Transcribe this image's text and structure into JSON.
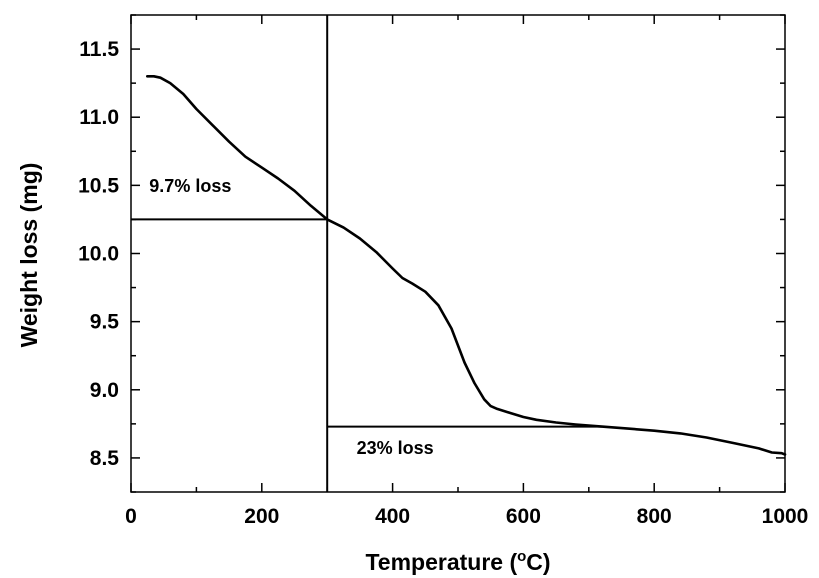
{
  "chart_data": {
    "type": "line",
    "xlabel": "Temperature (",
    "xlabel_superscript": "o",
    "xlabel_suffix": "C)",
    "ylabel": "Weight loss (mg)",
    "xlim": [
      0,
      1000
    ],
    "ylim": [
      8.25,
      11.75
    ],
    "x_ticks": [
      0,
      200,
      400,
      600,
      800,
      1000
    ],
    "x_tick_labels": [
      "0",
      "200",
      "400",
      "600",
      "800",
      "1000"
    ],
    "y_ticks": [
      8.5,
      9.0,
      9.5,
      10.0,
      10.5,
      11.0,
      11.5
    ],
    "y_tick_labels": [
      "8.5",
      "9.0",
      "9.5",
      "10.0",
      "10.5",
      "11.0",
      "11.5"
    ],
    "grid": false,
    "series": [
      {
        "color": "#000000",
        "x": [
          25,
          35,
          45,
          60,
          80,
          100,
          125,
          150,
          175,
          200,
          225,
          250,
          275,
          300,
          325,
          350,
          375,
          400,
          415,
          430,
          450,
          470,
          490,
          510,
          525,
          540,
          550,
          560,
          580,
          600,
          620,
          650,
          680,
          720,
          760,
          800,
          840,
          880,
          920,
          960,
          980,
          995,
          1000
        ],
        "y": [
          11.3,
          11.3,
          11.29,
          11.25,
          11.17,
          11.06,
          10.94,
          10.82,
          10.71,
          10.63,
          10.55,
          10.46,
          10.35,
          10.25,
          10.19,
          10.11,
          10.01,
          9.89,
          9.82,
          9.78,
          9.72,
          9.62,
          9.45,
          9.2,
          9.05,
          8.93,
          8.88,
          8.86,
          8.83,
          8.8,
          8.78,
          8.76,
          8.745,
          8.73,
          8.715,
          8.7,
          8.68,
          8.65,
          8.61,
          8.57,
          8.54,
          8.535,
          8.525
        ]
      }
    ],
    "reference_lines": [
      {
        "orientation": "vertical",
        "x": 300,
        "y_from": 8.25,
        "y_to": 11.75
      },
      {
        "orientation": "horizontal",
        "y": 10.25,
        "x_from": 0,
        "x_to": 300
      },
      {
        "orientation": "horizontal",
        "y": 8.73,
        "x_from": 300,
        "x_to": 720
      }
    ],
    "annotations": [
      {
        "text": "9.7% loss",
        "x": 28,
        "y": 10.45
      },
      {
        "text": "23% loss",
        "x": 345,
        "y": 8.53
      }
    ]
  }
}
